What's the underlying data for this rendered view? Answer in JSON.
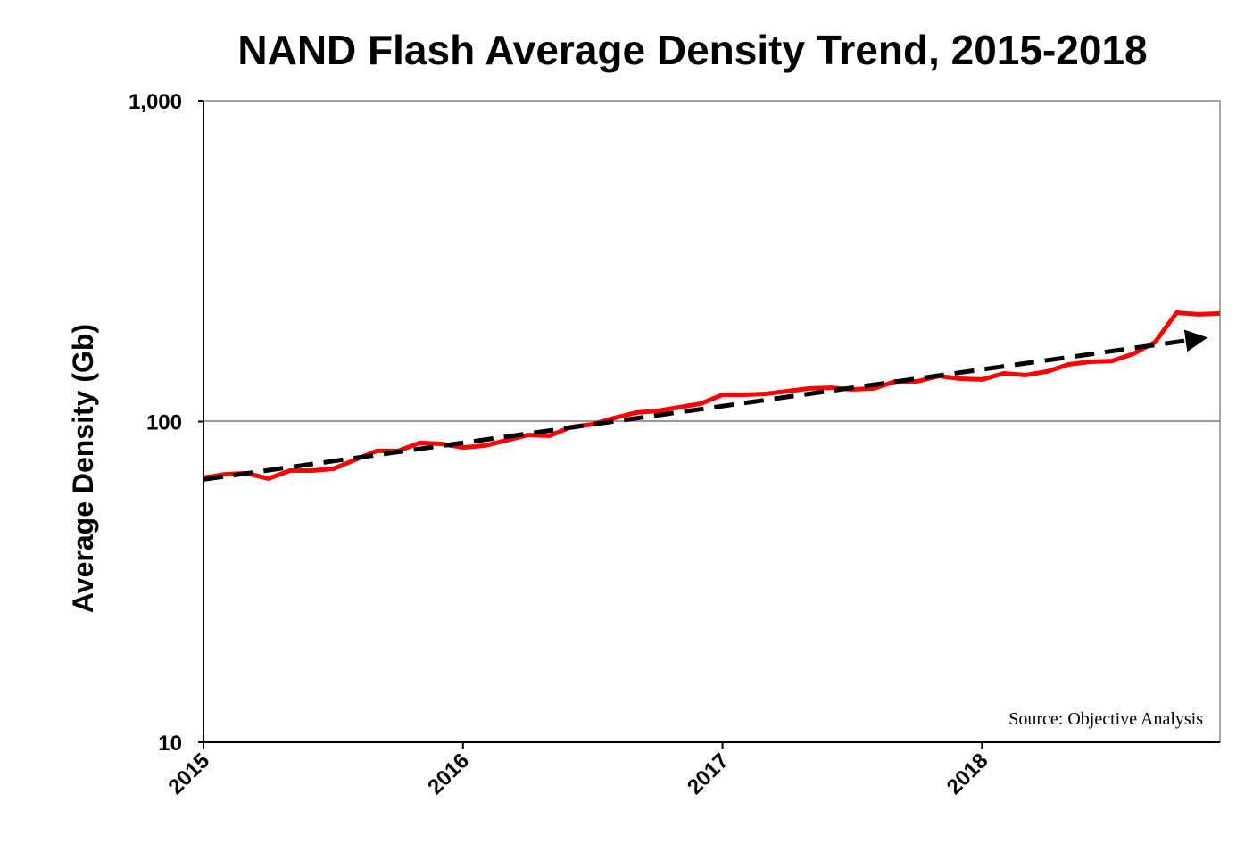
{
  "chart_data": {
    "type": "line",
    "title": "NAND Flash Average Density Trend, 2015-2018",
    "xlabel": "",
    "ylabel": "Average Density (Gb)",
    "yscale": "log",
    "ylim": [
      10,
      1000
    ],
    "xlim": [
      2015,
      2018.917
    ],
    "yticks": [
      {
        "v": 10,
        "label": "10"
      },
      {
        "v": 100,
        "label": "100"
      },
      {
        "v": 1000,
        "label": "1,000"
      }
    ],
    "xticks": [
      {
        "v": 2015,
        "label": "2015"
      },
      {
        "v": 2016,
        "label": "2016"
      },
      {
        "v": 2017,
        "label": "2017"
      },
      {
        "v": 2018,
        "label": "2018"
      }
    ],
    "grid": "horizontal at 100",
    "annotation": "Source: Objective Analysis",
    "series": [
      {
        "name": "Average Density",
        "color": "#ff0000",
        "style": "solid",
        "x_start": 2015,
        "x_step_months": 1,
        "values": [
          66.8,
          68.5,
          69.0,
          66.4,
          70.3,
          70.3,
          71.2,
          75.9,
          81.0,
          81.0,
          85.8,
          85.2,
          83.0,
          84.1,
          87.4,
          90.8,
          90.3,
          96.2,
          98.1,
          102.6,
          106.6,
          108.0,
          110.8,
          113.7,
          121.2,
          121.2,
          122.0,
          124.3,
          126.8,
          127.5,
          125.9,
          126.8,
          133.4,
          133.4,
          138.6,
          136.0,
          135.2,
          141.3,
          139.6,
          143.2,
          150.7,
          153.6,
          154.5,
          162.6,
          176.8,
          218.5,
          215.8,
          217.2
        ]
      },
      {
        "name": "Trend",
        "color": "#000000",
        "style": "dashed-arrow",
        "x": [
          2015,
          2018.86
        ],
        "values": [
          66.0,
          183.8
        ]
      }
    ]
  }
}
